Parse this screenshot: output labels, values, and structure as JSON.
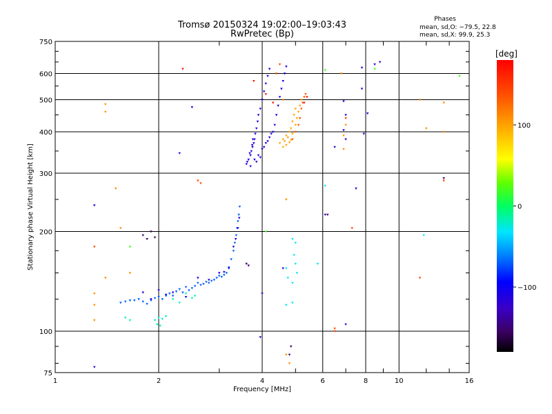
{
  "header": {
    "title_line1": "Tromsø 20150324 19:02:00–19:03:43",
    "title_line2": "RwPretec (Bp)",
    "phase_title": "Phases",
    "phase_line1": "mean, sd,O: −79.5, 22.8",
    "phase_line2": "mean, sd,X:  99.9, 25.3"
  },
  "chart_data": {
    "type": "scatter",
    "xlabel": "Frequency [MHz]",
    "ylabel": "Stationary phase Virtual Height [km]",
    "xscale": "log",
    "yscale": "log",
    "xlim": [
      1,
      16
    ],
    "ylim": [
      75,
      750
    ],
    "x_ticks": [
      1,
      2,
      4,
      6,
      8,
      10,
      16
    ],
    "x_tick_labels": [
      "1",
      "2",
      "4",
      "6",
      "8",
      "10",
      "16"
    ],
    "x_minor_ticks": [
      3,
      5,
      7,
      9,
      12,
      14
    ],
    "y_ticks": [
      75,
      100,
      200,
      300,
      400,
      500,
      600,
      750
    ],
    "y_tick_labels": [
      "75",
      "100",
      "200",
      "300",
      "400",
      "500",
      "600",
      "750"
    ],
    "y_minor_ticks": [
      80,
      90,
      125,
      150,
      175,
      250,
      350,
      450,
      550,
      650,
      700
    ],
    "grid": true,
    "colorbar": {
      "label": "[deg]",
      "range": [
        -180,
        180
      ],
      "ticks": [
        100,
        0,
        -100
      ],
      "tick_labels": [
        "100",
        "0",
        "−100"
      ]
    },
    "series": [
      {
        "trace": "low-E",
        "phase": -70,
        "points": [
          [
            1.55,
            122
          ],
          [
            1.6,
            123
          ],
          [
            1.65,
            124
          ],
          [
            1.7,
            124
          ],
          [
            1.75,
            125
          ],
          [
            1.8,
            123
          ],
          [
            1.85,
            121
          ],
          [
            1.9,
            124
          ],
          [
            1.95,
            126
          ],
          [
            2.0,
            127
          ],
          [
            2.05,
            125
          ],
          [
            2.1,
            128
          ],
          [
            2.15,
            130
          ],
          [
            2.2,
            128
          ],
          [
            2.25,
            132
          ],
          [
            2.3,
            134
          ],
          [
            2.35,
            131
          ],
          [
            2.4,
            136
          ],
          [
            2.45,
            133
          ],
          [
            2.5,
            135
          ],
          [
            2.55,
            137
          ],
          [
            2.6,
            140
          ],
          [
            2.65,
            138
          ],
          [
            2.7,
            139
          ],
          [
            2.75,
            141
          ],
          [
            2.8,
            140
          ],
          [
            2.85,
            142
          ],
          [
            2.9,
            143
          ],
          [
            2.95,
            145
          ],
          [
            3.0,
            147
          ],
          [
            3.05,
            146
          ],
          [
            3.1,
            148
          ],
          [
            3.15,
            150
          ],
          [
            3.2,
            156
          ],
          [
            3.25,
            165
          ],
          [
            3.3,
            175
          ],
          [
            3.33,
            185
          ],
          [
            3.36,
            195
          ],
          [
            3.38,
            205
          ],
          [
            3.4,
            215
          ],
          [
            3.42,
            225
          ],
          [
            3.44,
            238
          ]
        ]
      },
      {
        "trace": "low-E-blue",
        "phase": -110,
        "points": [
          [
            1.8,
            131
          ],
          [
            1.9,
            125
          ],
          [
            2.0,
            133
          ],
          [
            2.1,
            129
          ],
          [
            2.2,
            131
          ],
          [
            2.4,
            127
          ],
          [
            2.6,
            145
          ],
          [
            2.8,
            143
          ],
          [
            3.0,
            150
          ],
          [
            3.1,
            151
          ],
          [
            3.2,
            155
          ],
          [
            3.3,
            180
          ],
          [
            3.35,
            190
          ],
          [
            3.4,
            205
          ],
          [
            3.43,
            220
          ]
        ]
      },
      {
        "trace": "low-cyan",
        "phase": -20,
        "points": [
          [
            1.95,
            108
          ],
          [
            2.0,
            110
          ],
          [
            2.05,
            109
          ],
          [
            2.1,
            111
          ],
          [
            1.98,
            105
          ],
          [
            2.02,
            104
          ],
          [
            2.2,
            125
          ],
          [
            2.3,
            122
          ],
          [
            2.4,
            130
          ],
          [
            2.5,
            126
          ],
          [
            2.55,
            128
          ],
          [
            1.6,
            110
          ],
          [
            1.65,
            108
          ]
        ]
      },
      {
        "trace": "F-O",
        "phase": -110,
        "points": [
          [
            3.6,
            320
          ],
          [
            3.65,
            330
          ],
          [
            3.7,
            340
          ],
          [
            3.72,
            350
          ],
          [
            3.75,
            360
          ],
          [
            3.78,
            370
          ],
          [
            3.8,
            380
          ],
          [
            3.82,
            395
          ],
          [
            3.85,
            410
          ],
          [
            3.88,
            430
          ],
          [
            3.9,
            450
          ],
          [
            3.95,
            470
          ],
          [
            4.0,
            500
          ],
          [
            4.05,
            530
          ],
          [
            4.1,
            560
          ],
          [
            4.15,
            590
          ],
          [
            4.2,
            620
          ],
          [
            3.62,
            325
          ],
          [
            3.68,
            345
          ],
          [
            3.74,
            365
          ],
          [
            3.76,
            380
          ],
          [
            3.8,
            330
          ],
          [
            3.9,
            340
          ],
          [
            4.0,
            355
          ],
          [
            4.1,
            370
          ],
          [
            4.2,
            385
          ],
          [
            4.3,
            400
          ],
          [
            4.35,
            420
          ],
          [
            4.4,
            450
          ],
          [
            4.45,
            480
          ],
          [
            4.5,
            510
          ],
          [
            4.55,
            540
          ],
          [
            4.6,
            570
          ],
          [
            4.65,
            600
          ],
          [
            4.7,
            630
          ],
          [
            3.7,
            315
          ],
          [
            3.85,
            325
          ],
          [
            3.95,
            335
          ],
          [
            4.05,
            360
          ],
          [
            4.15,
            375
          ],
          [
            4.25,
            395
          ]
        ]
      },
      {
        "trace": "F-X",
        "phase": 100,
        "points": [
          [
            4.5,
            370
          ],
          [
            4.6,
            380
          ],
          [
            4.7,
            390
          ],
          [
            4.8,
            400
          ],
          [
            4.85,
            410
          ],
          [
            4.9,
            430
          ],
          [
            4.95,
            450
          ],
          [
            5.0,
            470
          ],
          [
            4.75,
            385
          ],
          [
            4.65,
            375
          ],
          [
            4.9,
            395
          ],
          [
            5.0,
            420
          ],
          [
            5.05,
            440
          ],
          [
            5.1,
            460
          ],
          [
            5.15,
            480
          ],
          [
            4.6,
            360
          ],
          [
            4.7,
            365
          ],
          [
            4.8,
            372
          ],
          [
            4.85,
            378
          ],
          [
            5.2,
            500
          ]
        ]
      },
      {
        "trace": "F-X-orange",
        "phase": 135,
        "points": [
          [
            4.9,
            380
          ],
          [
            5.0,
            400
          ],
          [
            5.1,
            420
          ],
          [
            5.15,
            440
          ],
          [
            5.2,
            470
          ],
          [
            5.25,
            490
          ],
          [
            5.3,
            510
          ],
          [
            5.35,
            520
          ],
          [
            4.4,
            600
          ],
          [
            4.5,
            640
          ]
        ]
      },
      {
        "trace": "F-red",
        "phase": 170,
        "points": [
          [
            3.78,
            570
          ],
          [
            4.1,
            520
          ],
          [
            4.3,
            490
          ],
          [
            5.3,
            490
          ],
          [
            5.4,
            510
          ],
          [
            2.35,
            620
          ]
        ]
      },
      {
        "trace": "scatter-cyan",
        "phase": -30,
        "points": [
          [
            4.9,
            190
          ],
          [
            4.95,
            170
          ],
          [
            5.0,
            160
          ],
          [
            5.05,
            150
          ],
          [
            4.9,
            140
          ],
          [
            5.0,
            185
          ],
          [
            4.7,
            155
          ],
          [
            4.75,
            145
          ],
          [
            6.1,
            275
          ],
          [
            5.8,
            160
          ],
          [
            4.9,
            122
          ],
          [
            4.7,
            120
          ],
          [
            11.8,
            195
          ]
        ]
      },
      {
        "trace": "scatter-yellow",
        "phase": 110,
        "points": [
          [
            1.3,
            130
          ],
          [
            1.3,
            120
          ],
          [
            1.3,
            108
          ],
          [
            1.4,
            145
          ],
          [
            1.4,
            485
          ],
          [
            1.4,
            460
          ],
          [
            1.5,
            270
          ],
          [
            1.55,
            205
          ],
          [
            1.65,
            150
          ],
          [
            4.6,
            500
          ],
          [
            4.7,
            250
          ],
          [
            6.9,
            355
          ],
          [
            6.9,
            390
          ],
          [
            7.0,
            420
          ],
          [
            11.5,
            500
          ],
          [
            12.0,
            410
          ],
          [
            13.5,
            400
          ],
          [
            13.5,
            490
          ],
          [
            6.8,
            600
          ],
          [
            4.8,
            80
          ],
          [
            4.7,
            85
          ]
        ]
      },
      {
        "trace": "scatter-orange",
        "phase": 140,
        "points": [
          [
            1.3,
            180
          ],
          [
            2.6,
            285
          ],
          [
            2.65,
            280
          ],
          [
            7.3,
            205
          ],
          [
            6.5,
            102
          ],
          [
            6.5,
            100
          ],
          [
            7.0,
            440
          ],
          [
            13.5,
            285
          ],
          [
            11.5,
            145
          ]
        ]
      },
      {
        "trace": "scatter-blue",
        "phase": -120,
        "points": [
          [
            1.3,
            240
          ],
          [
            1.3,
            78
          ],
          [
            2.5,
            475
          ],
          [
            2.3,
            345
          ],
          [
            4.0,
            130
          ],
          [
            4.6,
            155
          ],
          [
            6.5,
            360
          ],
          [
            6.9,
            405
          ],
          [
            7.0,
            380
          ],
          [
            7.0,
            450
          ],
          [
            7.0,
            105
          ],
          [
            7.5,
            270
          ],
          [
            7.9,
            395
          ],
          [
            8.1,
            455
          ],
          [
            8.5,
            640
          ],
          [
            8.8,
            650
          ],
          [
            7.8,
            625
          ],
          [
            7.8,
            540
          ],
          [
            6.9,
            495
          ],
          [
            6.1,
            225
          ],
          [
            3.95,
            96
          ]
        ]
      },
      {
        "trace": "scatter-purple",
        "phase": -150,
        "points": [
          [
            1.8,
            195
          ],
          [
            1.85,
            190
          ],
          [
            1.9,
            200
          ],
          [
            1.95,
            192
          ],
          [
            3.6,
            160
          ],
          [
            3.65,
            158
          ],
          [
            4.8,
            85
          ],
          [
            4.85,
            90
          ],
          [
            6.2,
            225
          ],
          [
            13.5,
            290
          ]
        ]
      },
      {
        "trace": "scatter-green",
        "phase": 20,
        "points": [
          [
            4.1,
            200
          ],
          [
            1.65,
            180
          ],
          [
            8.5,
            620
          ],
          [
            15.0,
            590
          ],
          [
            6.1,
            615
          ]
        ]
      }
    ]
  }
}
